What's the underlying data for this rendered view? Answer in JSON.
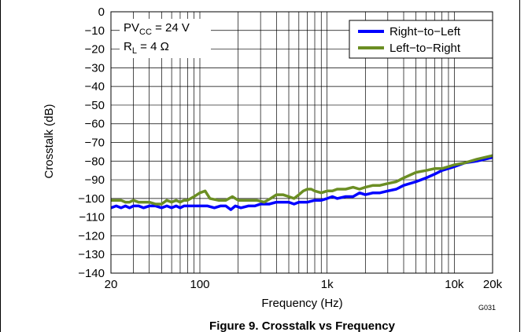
{
  "chart_data": {
    "type": "line",
    "title": "Figure 9. Crosstalk vs Frequency",
    "xlabel": "Frequency (Hz)",
    "ylabel": "Crosstalk (dB)",
    "xscale": "log",
    "xlim": [
      20,
      20000
    ],
    "ylim": [
      -140,
      0
    ],
    "grid": true,
    "legend_position": "top-right",
    "x_tick_labels": [
      "20",
      "100",
      "1k",
      "10k",
      "20k"
    ],
    "x_tick_values": [
      20,
      100,
      1000,
      10000,
      20000
    ],
    "y_ticks": [
      0,
      -10,
      -20,
      -30,
      -40,
      -50,
      -60,
      -70,
      -80,
      -90,
      -100,
      -110,
      -120,
      -130,
      -140
    ],
    "annotation": {
      "line1_main": "PV",
      "line1_sub": "CC",
      "line1_rest": " = 24 V",
      "line2_main": "R",
      "line2_sub": "L",
      "line2_rest": " = 4 Ω"
    },
    "code_label": "G031",
    "series": [
      {
        "name": "Right−to−Left",
        "color": "#0000ff",
        "points": [
          [
            20,
            -105
          ],
          [
            22,
            -104
          ],
          [
            24,
            -105
          ],
          [
            26,
            -104
          ],
          [
            28,
            -105
          ],
          [
            30,
            -104
          ],
          [
            33,
            -104
          ],
          [
            36,
            -105
          ],
          [
            40,
            -104
          ],
          [
            45,
            -104
          ],
          [
            50,
            -105
          ],
          [
            55,
            -104
          ],
          [
            60,
            -105
          ],
          [
            65,
            -104
          ],
          [
            70,
            -105
          ],
          [
            75,
            -104
          ],
          [
            80,
            -104
          ],
          [
            90,
            -104
          ],
          [
            100,
            -104
          ],
          [
            115,
            -104
          ],
          [
            130,
            -105
          ],
          [
            145,
            -104
          ],
          [
            160,
            -104
          ],
          [
            175,
            -106
          ],
          [
            190,
            -104
          ],
          [
            210,
            -105
          ],
          [
            240,
            -104
          ],
          [
            270,
            -104
          ],
          [
            300,
            -103
          ],
          [
            350,
            -103
          ],
          [
            400,
            -102
          ],
          [
            450,
            -102
          ],
          [
            500,
            -102
          ],
          [
            550,
            -103
          ],
          [
            600,
            -102
          ],
          [
            700,
            -102
          ],
          [
            800,
            -101
          ],
          [
            900,
            -101
          ],
          [
            1000,
            -100
          ],
          [
            1100,
            -99
          ],
          [
            1200,
            -100
          ],
          [
            1400,
            -99
          ],
          [
            1600,
            -99
          ],
          [
            1800,
            -97
          ],
          [
            2000,
            -98
          ],
          [
            2300,
            -97
          ],
          [
            2600,
            -97
          ],
          [
            3000,
            -96
          ],
          [
            3500,
            -95
          ],
          [
            4000,
            -93
          ],
          [
            5000,
            -91
          ],
          [
            6000,
            -89
          ],
          [
            7000,
            -87
          ],
          [
            8000,
            -85
          ],
          [
            10000,
            -83
          ],
          [
            12000,
            -81
          ],
          [
            15000,
            -80
          ],
          [
            20000,
            -78
          ]
        ]
      },
      {
        "name": "Left−to−Right",
        "color": "#6b8e23",
        "points": [
          [
            20,
            -101
          ],
          [
            22,
            -101
          ],
          [
            24,
            -101
          ],
          [
            26,
            -102
          ],
          [
            28,
            -102
          ],
          [
            30,
            -101
          ],
          [
            33,
            -102
          ],
          [
            36,
            -102
          ],
          [
            40,
            -102
          ],
          [
            45,
            -103
          ],
          [
            50,
            -103
          ],
          [
            55,
            -101
          ],
          [
            60,
            -102
          ],
          [
            65,
            -101
          ],
          [
            70,
            -102
          ],
          [
            75,
            -101
          ],
          [
            80,
            -101
          ],
          [
            90,
            -99
          ],
          [
            100,
            -97
          ],
          [
            110,
            -96
          ],
          [
            120,
            -100
          ],
          [
            140,
            -101
          ],
          [
            160,
            -101
          ],
          [
            180,
            -99
          ],
          [
            200,
            -101
          ],
          [
            240,
            -101
          ],
          [
            280,
            -101
          ],
          [
            320,
            -102
          ],
          [
            360,
            -100
          ],
          [
            400,
            -98
          ],
          [
            450,
            -98
          ],
          [
            500,
            -99
          ],
          [
            550,
            -100
          ],
          [
            600,
            -98
          ],
          [
            650,
            -96
          ],
          [
            700,
            -95
          ],
          [
            750,
            -95
          ],
          [
            800,
            -96
          ],
          [
            900,
            -97
          ],
          [
            1000,
            -96
          ],
          [
            1100,
            -96
          ],
          [
            1200,
            -95
          ],
          [
            1400,
            -95
          ],
          [
            1600,
            -94
          ],
          [
            1800,
            -95
          ],
          [
            2000,
            -94
          ],
          [
            2300,
            -93
          ],
          [
            2600,
            -93
          ],
          [
            3000,
            -92
          ],
          [
            3500,
            -91
          ],
          [
            4000,
            -89
          ],
          [
            5000,
            -86
          ],
          [
            6000,
            -85
          ],
          [
            7000,
            -84
          ],
          [
            8000,
            -84
          ],
          [
            10000,
            -82
          ],
          [
            12000,
            -81
          ],
          [
            15000,
            -79
          ],
          [
            20000,
            -77
          ]
        ]
      }
    ]
  }
}
